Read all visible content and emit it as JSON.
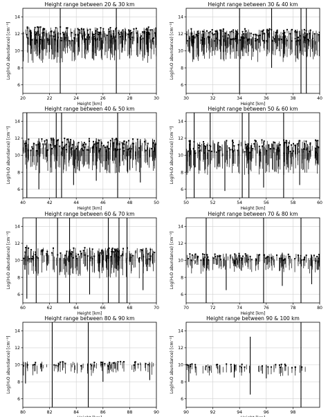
{
  "chart_data": [
    {
      "type": "scatter",
      "title": "Height range between 20 & 30 km",
      "xlabel": "Height [km]",
      "ylabel": "Log(H₂O abundance) [cm⁻³]",
      "xlim": [
        20,
        30
      ],
      "ylim": [
        5,
        15
      ],
      "xticks": [
        "20",
        "22",
        "24",
        "26",
        "28",
        "30"
      ],
      "yticks": [
        "6",
        "8",
        "10",
        "12",
        "14"
      ],
      "grid": true,
      "series": [
        {
          "band_x": [
            20,
            30
          ],
          "band_y": [
            9.2,
            12.8
          ],
          "center_y": 11.3,
          "spikes": [
            [
              22.8,
              5,
              15
            ],
            [
              27.0,
              5,
              15
            ],
            [
              21.5,
              9.0,
              12.6
            ],
            [
              25.2,
              9.1,
              12.3
            ],
            [
              28.6,
              9.3,
              12.4
            ]
          ]
        }
      ]
    },
    {
      "type": "scatter",
      "title": "Height range between 30 & 40 km",
      "xlabel": "Height [km]",
      "ylabel": "Log(H₂O abundance) [cm⁻³]",
      "xlim": [
        30,
        40
      ],
      "ylim": [
        5,
        15
      ],
      "xticks": [
        "30",
        "32",
        "34",
        "36",
        "38",
        "40"
      ],
      "yticks": [
        "6",
        "8",
        "10",
        "12",
        "14"
      ],
      "grid": true,
      "series": [
        {
          "band_x": [
            30,
            40
          ],
          "band_y": [
            9.3,
            12.6
          ],
          "center_y": 11.1,
          "spikes": [
            [
              34.0,
              5,
              15
            ],
            [
              36.4,
              8,
              15
            ],
            [
              38.6,
              5,
              15
            ],
            [
              39.0,
              5,
              15
            ],
            [
              32.6,
              9.0,
              12.5
            ],
            [
              37.3,
              9.2,
              12.4
            ]
          ]
        }
      ]
    },
    {
      "type": "scatter",
      "title": "Height range between 40 & 50 km",
      "xlabel": "Height [km]",
      "ylabel": "Log(H₂O abundance) [cm⁻³]",
      "xlim": [
        40,
        50
      ],
      "ylim": [
        5,
        15
      ],
      "xticks": [
        "40",
        "42",
        "44",
        "46",
        "48",
        "50"
      ],
      "yticks": [
        "6",
        "8",
        "10",
        "12",
        "14"
      ],
      "grid": true,
      "series": [
        {
          "band_x": [
            40,
            50
          ],
          "band_y": [
            8.5,
            12.0
          ],
          "center_y": 10.7,
          "spikes": [
            [
              40.3,
              5,
              15
            ],
            [
              42.5,
              5,
              15
            ],
            [
              42.9,
              5,
              15
            ],
            [
              47.1,
              5,
              15
            ],
            [
              41.2,
              6.0,
              12.0
            ],
            [
              43.8,
              6.5,
              11.8
            ],
            [
              45.5,
              7.0,
              12.0
            ],
            [
              48.8,
              6.8,
              11.9
            ]
          ]
        }
      ]
    },
    {
      "type": "scatter",
      "title": "Height range between 50 & 60 km",
      "xlabel": "Height [km]",
      "ylabel": "Log(H₂O abundance) [cm⁻³]",
      "xlim": [
        50,
        60
      ],
      "ylim": [
        5,
        15
      ],
      "xticks": [
        "50",
        "52",
        "54",
        "56",
        "58",
        "60"
      ],
      "yticks": [
        "6",
        "8",
        "10",
        "12",
        "14"
      ],
      "grid": true,
      "series": [
        {
          "band_x": [
            50,
            60
          ],
          "band_y": [
            8.3,
            11.8
          ],
          "center_y": 10.3,
          "spikes": [
            [
              50.6,
              5,
              15
            ],
            [
              51.8,
              5,
              15
            ],
            [
              54.2,
              5,
              15
            ],
            [
              54.7,
              5,
              15
            ],
            [
              57.3,
              5,
              15
            ],
            [
              52.9,
              5.8,
              11.7
            ],
            [
              55.8,
              6.2,
              11.6
            ],
            [
              58.5,
              6.5,
              11.8
            ]
          ]
        }
      ]
    },
    {
      "type": "scatter",
      "title": "Height range between 60 & 70 km",
      "xlabel": "Height [km]",
      "ylabel": "Log(H₂O abundance) [cm⁻³]",
      "xlim": [
        60,
        70
      ],
      "ylim": [
        5,
        15
      ],
      "xticks": [
        "60",
        "62",
        "64",
        "66",
        "68",
        "70"
      ],
      "yticks": [
        "6",
        "8",
        "10",
        "12",
        "14"
      ],
      "grid": true,
      "series": [
        {
          "band_x": [
            60,
            70
          ],
          "band_y": [
            8.5,
            11.5
          ],
          "center_y": 10.0,
          "spikes": [
            [
              61.0,
              5,
              15
            ],
            [
              62.6,
              5,
              15
            ],
            [
              63.5,
              5,
              15
            ],
            [
              66.4,
              5,
              15
            ],
            [
              67.2,
              5,
              15
            ],
            [
              67.8,
              5,
              15
            ],
            [
              60.3,
              5.5,
              11.8
            ],
            [
              65.0,
              6.0,
              11.5
            ],
            [
              69.0,
              6.5,
              11.4
            ]
          ]
        }
      ]
    },
    {
      "type": "scatter",
      "title": "Height range between 70 & 80 km",
      "xlabel": "Height [km]",
      "ylabel": "Log(H₂O abundance) [cm⁻³]",
      "xlim": [
        70,
        80
      ],
      "ylim": [
        5,
        15
      ],
      "xticks": [
        "70",
        "72",
        "74",
        "76",
        "78",
        "80"
      ],
      "yticks": [
        "6",
        "8",
        "10",
        "12",
        "14"
      ],
      "grid": true,
      "series": [
        {
          "band_x": [
            70,
            80
          ],
          "band_y": [
            9.0,
            10.8
          ],
          "center_y": 9.9,
          "spikes": [
            [
              71.5,
              5,
              15
            ],
            [
              75.8,
              5,
              15
            ],
            [
              78.6,
              5,
              15
            ],
            [
              73.0,
              6.5,
              10.8
            ],
            [
              77.2,
              7.0,
              10.9
            ],
            [
              79.4,
              7.2,
              10.6
            ]
          ]
        }
      ]
    },
    {
      "type": "scatter",
      "title": "Height range between 80 & 90 km",
      "xlabel": "Height [km]",
      "ylabel": "Log(H₂O abundance) [cm⁻³]",
      "xlim": [
        80,
        90
      ],
      "ylim": [
        5,
        15
      ],
      "xticks": [
        "80",
        "82",
        "84",
        "86",
        "88",
        "90"
      ],
      "yticks": [
        "6",
        "8",
        "10",
        "12",
        "14"
      ],
      "grid": true,
      "series": [
        {
          "band_x": [
            80,
            90
          ],
          "band_y": [
            9.2,
            10.4
          ],
          "center_y": 9.8,
          "spikes": [
            [
              82.2,
              5,
              15
            ],
            [
              84.9,
              5,
              15
            ],
            [
              80.2,
              7.8,
              10.3
            ],
            [
              86.0,
              8.0,
              10.4
            ],
            [
              89.5,
              8.2,
              10.2
            ]
          ]
        }
      ]
    },
    {
      "type": "scatter",
      "title": "Height range between 90 & 100 km",
      "xlabel": "Height [km]",
      "ylabel": "Log(H₂O abundance) [cm⁻³]",
      "xlim": [
        90,
        100
      ],
      "ylim": [
        5,
        15
      ],
      "xticks": [
        "90",
        "92",
        "94",
        "96",
        "98"
      ],
      "yticks": [
        "6",
        "8",
        "10",
        "12",
        "14"
      ],
      "grid": true,
      "series": [
        {
          "band_x": [
            90,
            100
          ],
          "band_y": [
            9.1,
            10.1
          ],
          "center_y": 9.6,
          "spikes": [
            [
              94.8,
              6.5,
              13.3
            ],
            [
              98.6,
              5,
              15
            ],
            [
              90.2,
              8.0,
              10.0
            ],
            [
              93.6,
              8.5,
              10.1
            ],
            [
              96.0,
              8.4,
              10.0
            ]
          ]
        }
      ]
    }
  ]
}
